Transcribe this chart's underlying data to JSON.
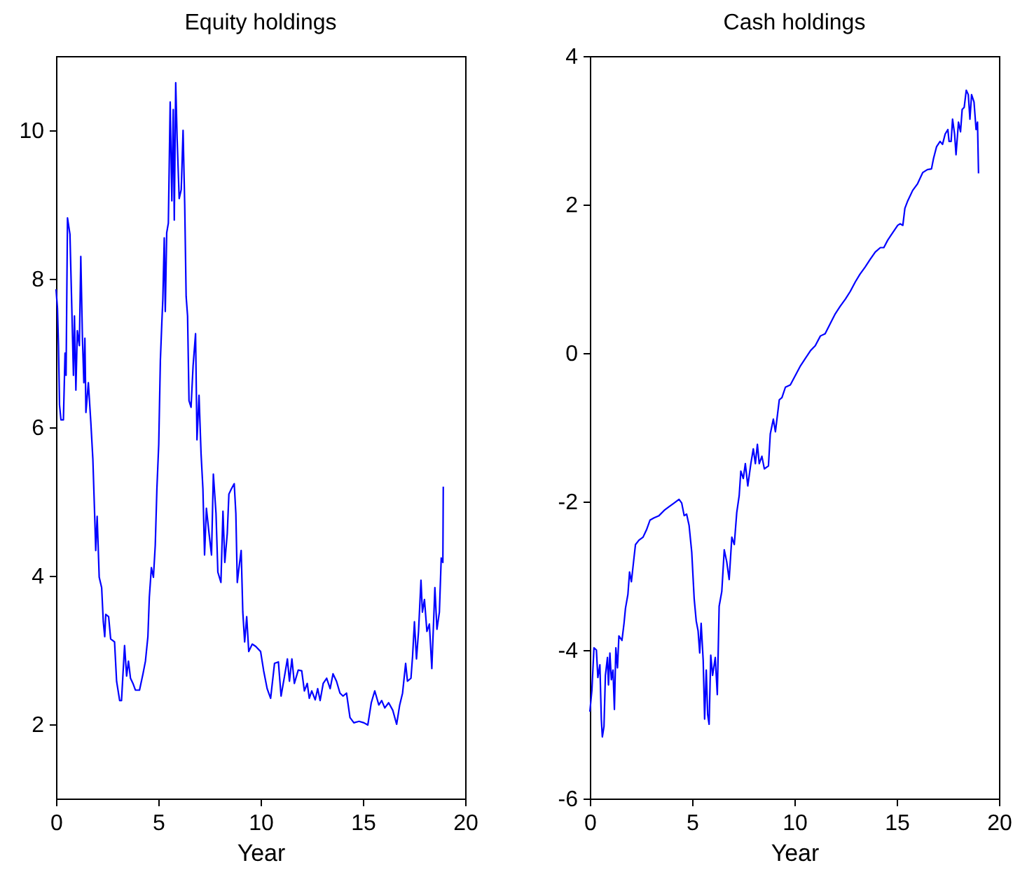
{
  "chart_data": [
    {
      "type": "line",
      "title": "Equity holdings",
      "xlabel": "Year",
      "xlim": [
        0,
        20
      ],
      "xticks": [
        0,
        5,
        10,
        15,
        20
      ],
      "ylim": [
        1,
        11
      ],
      "yticks": [
        2,
        4,
        6,
        8,
        10
      ],
      "x": [
        0,
        0.07,
        0.12,
        0.17,
        0.24,
        0.36,
        0.44,
        0.49,
        0.56,
        0.68,
        0.78,
        0.85,
        0.9,
        0.97,
        1.04,
        1.14,
        1.21,
        1.29,
        1.36,
        1.41,
        1.46,
        1.58,
        1.7,
        1.8,
        1.89,
        1.94,
        2.01,
        2.11,
        2.23,
        2.31,
        2.38,
        2.43,
        2.57,
        2.67,
        2.86,
        2.96,
        3.11,
        3.2,
        3.35,
        3.45,
        3.54,
        3.64,
        3.76,
        3.88,
        4.08,
        4.25,
        4.37,
        4.49,
        4.56,
        4.66,
        4.76,
        4.85,
        4.93,
        5.02,
        5.1,
        5.17,
        5.22,
        5.29,
        5.34,
        5.41,
        5.49,
        5.58,
        5.66,
        5.73,
        5.78,
        5.85,
        5.92,
        6.02,
        6.12,
        6.21,
        6.29,
        6.36,
        6.43,
        6.5,
        6.6,
        6.7,
        6.82,
        6.89,
        6.99,
        7.09,
        7.18,
        7.26,
        7.35,
        7.48,
        7.6,
        7.69,
        7.82,
        7.91,
        8.06,
        8.16,
        8.25,
        8.37,
        8.45,
        8.57,
        8.71,
        8.79,
        8.86,
        8.93,
        9.05,
        9.13,
        9.22,
        9.32,
        9.42,
        9.59,
        9.76,
        10.0,
        10.15,
        10.32,
        10.49,
        10.68,
        10.87,
        11.0,
        11.17,
        11.31,
        11.41,
        11.53,
        11.65,
        11.84,
        12.01,
        12.14,
        12.28,
        12.38,
        12.5,
        12.67,
        12.79,
        12.91,
        13.06,
        13.23,
        13.4,
        13.54,
        13.71,
        13.88,
        14.03,
        14.2,
        14.37,
        14.56,
        14.81,
        15.05,
        15.24,
        15.41,
        15.58,
        15.78,
        15.92,
        16.07,
        16.26,
        16.46,
        16.65,
        16.8,
        16.94,
        17.09,
        17.18,
        17.35,
        17.43,
        17.52,
        17.62,
        17.72,
        17.84,
        17.91,
        18.01,
        18.13,
        18.25,
        18.37,
        18.52,
        18.62,
        18.74,
        18.83,
        18.91,
        18.93
      ],
      "series": [
        {
          "color": "#0000ff",
          "values": [
            7.86,
            7.6,
            7.1,
            6.3,
            6.1,
            6.1,
            7.0,
            6.7,
            8.82,
            8.6,
            7.5,
            6.7,
            7.5,
            6.5,
            7.3,
            7.1,
            8.3,
            7.2,
            6.6,
            7.2,
            6.2,
            6.6,
            6.07,
            5.57,
            4.8,
            4.34,
            4.8,
            3.98,
            3.84,
            3.38,
            3.18,
            3.48,
            3.45,
            3.15,
            3.11,
            2.58,
            2.32,
            2.32,
            3.06,
            2.65,
            2.85,
            2.62,
            2.55,
            2.46,
            2.46,
            2.68,
            2.85,
            3.18,
            3.71,
            4.11,
            3.98,
            4.41,
            5.17,
            5.77,
            6.9,
            7.4,
            7.72,
            8.55,
            7.56,
            8.62,
            8.75,
            10.38,
            9.05,
            10.28,
            8.79,
            10.64,
            9.88,
            9.08,
            9.2,
            10.0,
            9.0,
            7.76,
            7.5,
            6.36,
            6.27,
            6.83,
            7.26,
            5.83,
            6.43,
            5.64,
            5.17,
            4.28,
            4.91,
            4.57,
            4.28,
            5.37,
            4.84,
            4.05,
            3.91,
            4.87,
            4.18,
            4.57,
            5.1,
            5.17,
            5.24,
            4.84,
            3.91,
            4.08,
            4.34,
            3.51,
            3.11,
            3.45,
            2.98,
            3.08,
            3.05,
            2.98,
            2.72,
            2.48,
            2.35,
            2.82,
            2.84,
            2.38,
            2.65,
            2.88,
            2.58,
            2.88,
            2.55,
            2.73,
            2.72,
            2.45,
            2.55,
            2.35,
            2.45,
            2.33,
            2.48,
            2.32,
            2.55,
            2.62,
            2.48,
            2.68,
            2.58,
            2.42,
            2.38,
            2.42,
            2.09,
            2.02,
            2.04,
            2.02,
            1.99,
            2.29,
            2.45,
            2.26,
            2.32,
            2.22,
            2.29,
            2.19,
            2.0,
            2.26,
            2.42,
            2.82,
            2.58,
            2.62,
            2.92,
            3.38,
            2.88,
            3.25,
            3.94,
            3.51,
            3.68,
            3.25,
            3.35,
            2.75,
            3.84,
            3.28,
            3.51,
            4.24,
            4.18,
            5.2
          ]
        }
      ]
    },
    {
      "type": "line",
      "title": "Cash holdings",
      "xlabel": "Year",
      "xlim": [
        0,
        20
      ],
      "xticks": [
        0,
        5,
        10,
        15,
        20
      ],
      "ylim": [
        -6,
        4
      ],
      "yticks": [
        -6,
        -4,
        -2,
        0,
        2,
        4
      ],
      "x": [
        0,
        0.1,
        0.2,
        0.32,
        0.39,
        0.49,
        0.56,
        0.61,
        0.69,
        0.76,
        0.86,
        0.91,
        0.98,
        1.05,
        1.13,
        1.2,
        1.27,
        1.35,
        1.42,
        1.57,
        1.67,
        1.74,
        1.86,
        1.94,
        2.03,
        2.16,
        2.23,
        2.4,
        2.6,
        2.77,
        2.94,
        3.14,
        3.38,
        3.63,
        3.87,
        4.12,
        4.36,
        4.49,
        4.61,
        4.73,
        4.85,
        4.98,
        5.1,
        5.2,
        5.29,
        5.37,
        5.44,
        5.54,
        5.61,
        5.69,
        5.76,
        5.83,
        5.91,
        6.0,
        6.13,
        6.23,
        6.32,
        6.45,
        6.57,
        6.69,
        6.81,
        6.94,
        7.06,
        7.18,
        7.3,
        7.38,
        7.5,
        7.6,
        7.72,
        7.87,
        7.99,
        8.09,
        8.19,
        8.28,
        8.41,
        8.53,
        8.73,
        8.82,
        8.97,
        9.07,
        9.26,
        9.39,
        9.56,
        9.8,
        10.05,
        10.3,
        10.54,
        10.78,
        11.02,
        11.27,
        11.5,
        11.76,
        12.0,
        12.24,
        12.5,
        12.73,
        12.98,
        13.2,
        13.46,
        13.7,
        13.95,
        14.2,
        14.37,
        14.56,
        14.8,
        15.05,
        15.17,
        15.3,
        15.4,
        15.54,
        15.78,
        16.02,
        16.27,
        16.5,
        16.7,
        16.8,
        16.95,
        17.12,
        17.24,
        17.37,
        17.5,
        17.56,
        17.66,
        17.73,
        17.83,
        17.9,
        18.02,
        18.12,
        18.2,
        18.3,
        18.4,
        18.5,
        18.58,
        18.66,
        18.78,
        18.88,
        18.95,
        19.0
      ],
      "series": [
        {
          "color": "#0000ff",
          "values": [
            -4.83,
            -4.54,
            -3.97,
            -4.0,
            -4.37,
            -4.2,
            -4.93,
            -5.17,
            -5.03,
            -4.34,
            -4.1,
            -4.47,
            -4.04,
            -4.4,
            -4.27,
            -4.8,
            -3.97,
            -4.24,
            -3.81,
            -3.87,
            -3.64,
            -3.44,
            -3.25,
            -2.95,
            -3.08,
            -2.75,
            -2.58,
            -2.52,
            -2.48,
            -2.38,
            -2.25,
            -2.22,
            -2.19,
            -2.12,
            -2.07,
            -2.02,
            -1.97,
            -2.02,
            -2.19,
            -2.17,
            -2.32,
            -2.68,
            -3.31,
            -3.61,
            -3.74,
            -4.04,
            -3.64,
            -4.14,
            -4.93,
            -4.27,
            -4.87,
            -5.0,
            -4.07,
            -4.34,
            -4.1,
            -4.6,
            -3.41,
            -3.21,
            -2.65,
            -2.81,
            -3.05,
            -2.48,
            -2.58,
            -2.15,
            -1.92,
            -1.59,
            -1.69,
            -1.49,
            -1.79,
            -1.49,
            -1.29,
            -1.49,
            -1.23,
            -1.49,
            -1.39,
            -1.56,
            -1.52,
            -1.09,
            -0.89,
            -1.06,
            -0.63,
            -0.6,
            -0.46,
            -0.43,
            -0.3,
            -0.17,
            -0.07,
            0.03,
            0.1,
            0.23,
            0.26,
            0.4,
            0.53,
            0.63,
            0.73,
            0.83,
            0.96,
            1.06,
            1.16,
            1.26,
            1.36,
            1.42,
            1.42,
            1.52,
            1.62,
            1.72,
            1.74,
            1.72,
            1.95,
            2.05,
            2.19,
            2.28,
            2.43,
            2.47,
            2.48,
            2.62,
            2.78,
            2.85,
            2.81,
            2.95,
            3.01,
            2.85,
            2.85,
            3.15,
            2.95,
            2.67,
            3.11,
            2.98,
            3.28,
            3.31,
            3.54,
            3.48,
            3.15,
            3.48,
            3.38,
            3.01,
            3.11,
            2.42
          ]
        }
      ]
    }
  ]
}
